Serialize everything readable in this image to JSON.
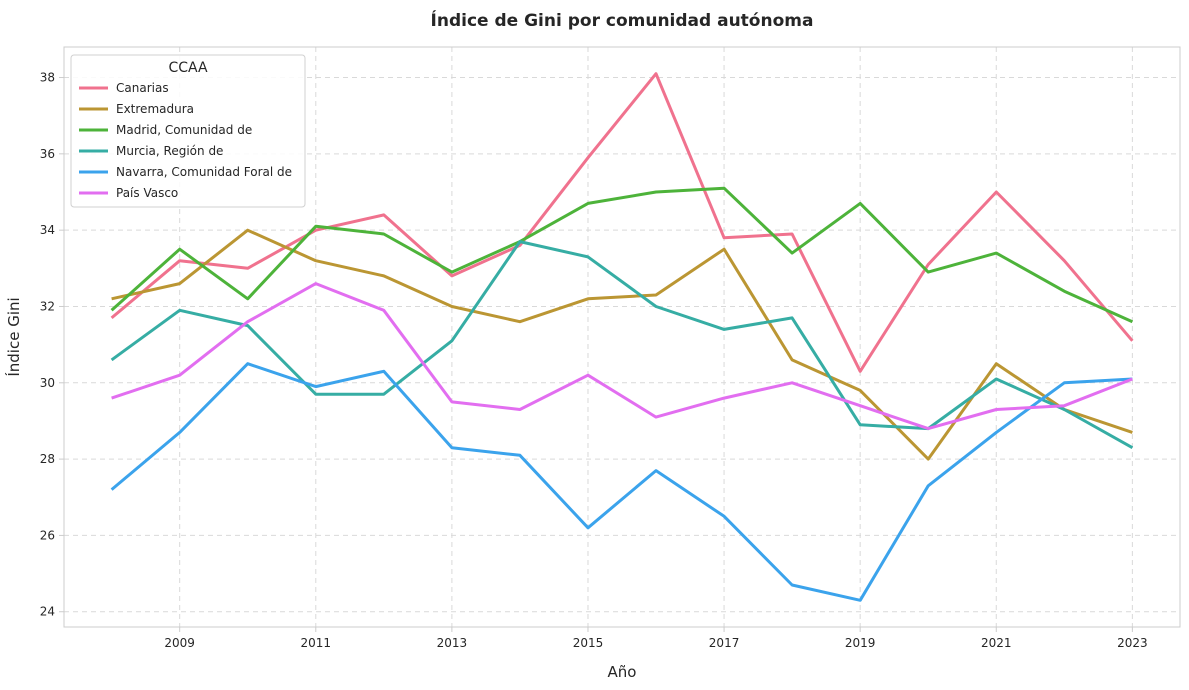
{
  "chart_data": {
    "type": "line",
    "title": "Índice de Gini por comunidad autónoma",
    "xlabel": "Año",
    "ylabel": "Índice Gini",
    "x": [
      2008,
      2009,
      2010,
      2011,
      2012,
      2013,
      2014,
      2015,
      2016,
      2017,
      2018,
      2019,
      2020,
      2021,
      2022,
      2023
    ],
    "xlim": [
      2007.3,
      2023.7
    ],
    "ylim": [
      23.6,
      38.8
    ],
    "x_ticks": [
      2009,
      2011,
      2013,
      2015,
      2017,
      2019,
      2021,
      2023
    ],
    "y_ticks": [
      24,
      26,
      28,
      30,
      32,
      34,
      36,
      38
    ],
    "grid": true,
    "legend": {
      "title": "CCAA",
      "position": "top-left"
    },
    "series": [
      {
        "name": "Canarias",
        "color": "#f0728e",
        "values": [
          31.7,
          33.2,
          33.0,
          34.0,
          34.4,
          32.8,
          33.6,
          35.9,
          38.1,
          33.8,
          33.9,
          30.3,
          33.1,
          35.0,
          33.2,
          31.1
        ]
      },
      {
        "name": "Extremadura",
        "color": "#bb9633",
        "values": [
          32.2,
          32.6,
          34.0,
          33.2,
          32.8,
          32.0,
          31.6,
          32.2,
          32.3,
          33.5,
          30.6,
          29.8,
          28.0,
          30.5,
          29.3,
          28.7
        ]
      },
      {
        "name": "Madrid, Comunidad de",
        "color": "#4db33a",
        "values": [
          31.9,
          33.5,
          32.2,
          34.1,
          33.9,
          32.9,
          33.7,
          34.7,
          35.0,
          35.1,
          33.4,
          34.7,
          32.9,
          33.4,
          32.4,
          31.6
        ]
      },
      {
        "name": "Murcia, Región de",
        "color": "#36ada4",
        "values": [
          30.6,
          31.9,
          31.5,
          29.7,
          29.7,
          31.1,
          33.7,
          33.3,
          32.0,
          31.4,
          31.7,
          28.9,
          28.8,
          30.1,
          29.3,
          28.3
        ]
      },
      {
        "name": "Navarra, Comunidad Foral de",
        "color": "#3ba3ec",
        "values": [
          27.2,
          28.7,
          30.5,
          29.9,
          30.3,
          28.3,
          28.1,
          26.2,
          27.7,
          26.5,
          24.7,
          24.3,
          27.3,
          28.7,
          30.0,
          30.1
        ]
      },
      {
        "name": "País Vasco",
        "color": "#e26ef0",
        "values": [
          29.6,
          30.2,
          31.6,
          32.6,
          31.9,
          29.5,
          29.3,
          30.2,
          29.1,
          29.6,
          30.0,
          29.4,
          28.8,
          29.3,
          29.4,
          30.1
        ]
      }
    ]
  }
}
